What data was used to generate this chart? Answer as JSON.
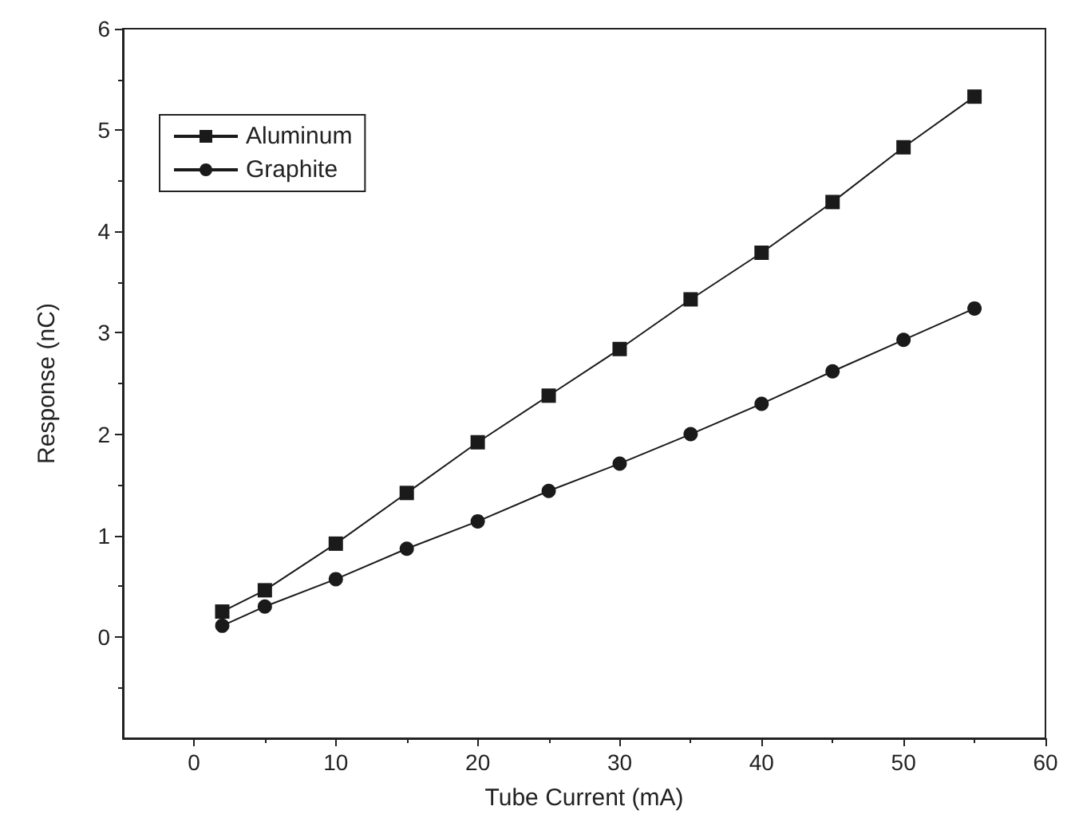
{
  "chart_data": {
    "type": "line",
    "xlabel": "Tube Current (mA)",
    "ylabel": "Response (nC)",
    "x": [
      2,
      5,
      10,
      15,
      20,
      25,
      30,
      35,
      40,
      45,
      50,
      55
    ],
    "series": [
      {
        "name": "Aluminum",
        "color": "#1a1a1a",
        "marker": "square",
        "values": [
          0.25,
          0.46,
          0.92,
          1.42,
          1.92,
          2.38,
          2.84,
          3.33,
          3.79,
          4.29,
          4.83,
          5.33
        ]
      },
      {
        "name": "Graphite",
        "color": "#1a1a1a",
        "marker": "circle",
        "values": [
          0.11,
          0.3,
          0.57,
          0.87,
          1.14,
          1.44,
          1.71,
          2.0,
          2.3,
          2.62,
          2.93,
          3.24
        ]
      }
    ],
    "xlim": [
      -5,
      60
    ],
    "xticks": [
      0,
      10,
      20,
      30,
      40,
      50,
      60
    ],
    "ylim": [
      -1,
      6
    ],
    "yticks": [
      0,
      1,
      2,
      3,
      4,
      5,
      6
    ],
    "legend": "top left",
    "grid": false,
    "line_style": "solid"
  }
}
